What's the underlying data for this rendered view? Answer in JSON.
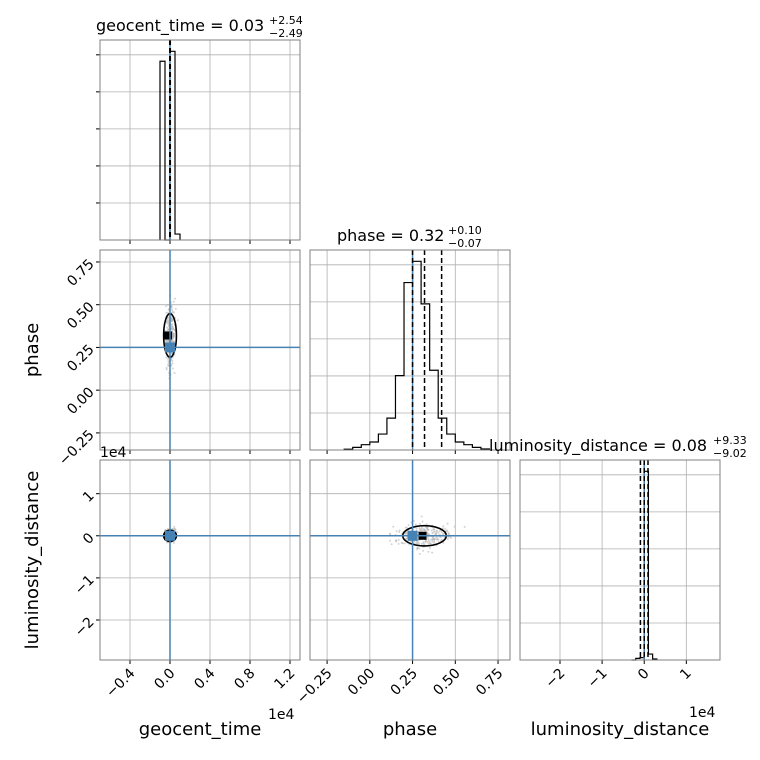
{
  "chart_data": {
    "type": "corner",
    "parameters": [
      "geocent_time",
      "phase",
      "luminosity_distance"
    ],
    "axis_labels": {
      "geocent_time": "geocent_time",
      "phase": "phase",
      "luminosity_distance": "luminosity_distance"
    },
    "offset_labels": {
      "geocent_time": "1e4",
      "luminosity_distance": "1e4"
    },
    "titles": {
      "geocent_time": {
        "name": "geocent_time",
        "value": "0.03",
        "plus": "+2.54",
        "minus": "−2.49"
      },
      "phase": {
        "name": "phase",
        "value": "0.32",
        "plus": "+0.10",
        "minus": "−0.07"
      },
      "luminosity_distance": {
        "name": "luminosity_distance",
        "value": "0.08",
        "plus": "+9.33",
        "minus": "−9.02"
      }
    },
    "ranges": {
      "geocent_time": [
        -0.7,
        1.3
      ],
      "phase": [
        -0.35,
        0.82
      ],
      "luminosity_distance": [
        -2.95,
        1.8
      ]
    },
    "ticks": {
      "geocent_time": [
        -0.4,
        0.0,
        0.4,
        0.8,
        1.2
      ],
      "phase": [
        -0.25,
        0.0,
        0.25,
        0.5,
        0.75
      ],
      "luminosity_distance": [
        -2,
        -1,
        0,
        1
      ]
    },
    "tick_labels": {
      "geocent_time": [
        "−0.4",
        "0.0",
        "0.4",
        "0.8",
        "1.2"
      ],
      "phase": [
        "−0.25",
        "0.00",
        "0.25",
        "0.50",
        "0.75"
      ],
      "luminosity_distance": [
        "−2",
        "−1",
        "0",
        "1"
      ],
      "luminosity_distance_row": [
        "1",
        "0",
        "−1",
        "−2"
      ]
    },
    "row_ticks": {
      "luminosity_distance": [
        1,
        0,
        -1,
        -2
      ]
    },
    "truths": {
      "geocent_time": 0.0,
      "phase": 0.25,
      "luminosity_distance": 0.0
    },
    "quantiles": {
      "geocent_time": [
        -0.0025,
        0.0003,
        0.0029
      ],
      "phase": [
        0.25,
        0.32,
        0.42
      ],
      "luminosity_distance": [
        -0.09,
        0.0,
        0.09
      ]
    },
    "histograms": {
      "geocent_time": {
        "bins": [
          -0.1,
          -0.05,
          0.0,
          0.05,
          0.1
        ],
        "counts": [
          0.9,
          0.0,
          0.95,
          0.03
        ]
      },
      "phase": {
        "bins": [
          -0.15,
          -0.1,
          -0.05,
          0.0,
          0.05,
          0.1,
          0.15,
          0.2,
          0.25,
          0.3,
          0.35,
          0.4,
          0.45,
          0.5,
          0.55,
          0.6,
          0.65,
          0.7
        ],
        "counts": [
          0.003,
          0.01,
          0.02,
          0.03,
          0.06,
          0.12,
          0.28,
          0.63,
          0.71,
          0.55,
          0.3,
          0.12,
          0.06,
          0.03,
          0.02,
          0.01,
          0.004
        ]
      },
      "luminosity_distance": {
        "bins": [
          -0.3,
          -0.2,
          -0.1,
          0.0,
          0.1,
          0.2,
          0.3
        ],
        "counts": [
          0.0,
          0.008,
          0.012,
          0.95,
          0.03,
          0.005
        ]
      }
    },
    "grid": true,
    "truth_color": "#4682b4",
    "line_color": "#000000",
    "scatter_color": "#b0b0b0"
  }
}
